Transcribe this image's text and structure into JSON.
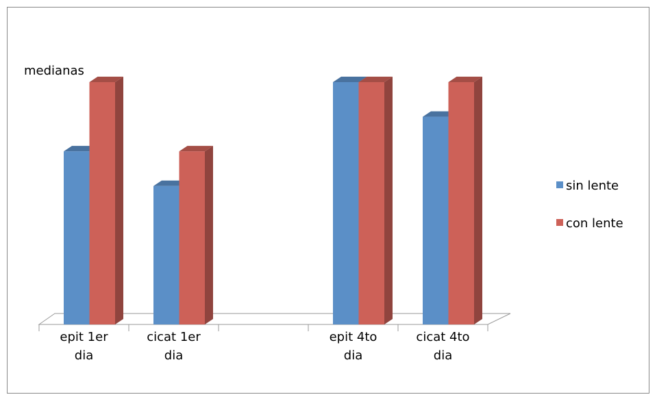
{
  "chart_data": {
    "type": "bar3d",
    "title": "medianas",
    "categories": [
      "epit 1er dia",
      "cicat 1er dia",
      null,
      "epit 4to dia",
      "cicat 4to dia"
    ],
    "series": [
      {
        "name": "sin lente",
        "color": "#5b8fc7",
        "values": [
          2.5,
          2,
          null,
          3.5,
          3
        ]
      },
      {
        "name": "con lente",
        "color": "#cd6158",
        "values": [
          3.5,
          2.5,
          null,
          3.5,
          3.5
        ]
      }
    ],
    "ylim": [
      0,
      3.5
    ],
    "legend": "right"
  }
}
